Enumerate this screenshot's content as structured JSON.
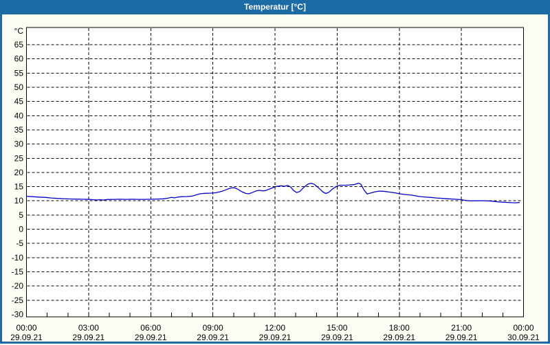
{
  "window": {
    "title": "Temperatur [°C]",
    "titlebar_color": "#1c6ba4",
    "border_color": "#1c6ba4",
    "content_background": "#fcfef5"
  },
  "chart_data": {
    "type": "line",
    "title": "Temperatur [°C]",
    "plot_background": "#ffffff",
    "grid": {
      "style": "dashed",
      "color": "#000000",
      "vertical_every_hours": 3,
      "horizontal_every_degC": 5
    },
    "y_axis": {
      "unit_label": "°C",
      "min": -30,
      "max": 65,
      "tick_step": 5,
      "tick_labels": [
        "65",
        "60",
        "55",
        "50",
        "45",
        "40",
        "35",
        "30",
        "25",
        "20",
        "15",
        "10",
        "5",
        "0",
        "-5",
        "-10",
        "-15",
        "-20",
        "-25",
        "-30"
      ]
    },
    "x_axis": {
      "minor_tick_hours": 1,
      "major_tick_hours": 3,
      "ticks": [
        {
          "hour": 0,
          "time": "00:00",
          "date": "29.09.21"
        },
        {
          "hour": 3,
          "time": "03:00",
          "date": "29.09.21"
        },
        {
          "hour": 6,
          "time": "06:00",
          "date": "29.09.21"
        },
        {
          "hour": 9,
          "time": "09:00",
          "date": "29.09.21"
        },
        {
          "hour": 12,
          "time": "12:00",
          "date": "29.09.21"
        },
        {
          "hour": 15,
          "time": "15:00",
          "date": "29.09.21"
        },
        {
          "hour": 18,
          "time": "18:00",
          "date": "29.09.21"
        },
        {
          "hour": 21,
          "time": "21:00",
          "date": "29.09.21"
        },
        {
          "hour": 24,
          "time": "00:00",
          "date": "30.09.21"
        }
      ]
    },
    "series": [
      {
        "name": "Temperatur",
        "color": "#0101cd",
        "points": [
          [
            0.0,
            11.6
          ],
          [
            0.3,
            11.45
          ],
          [
            0.6,
            11.3
          ],
          [
            0.9,
            11.2
          ],
          [
            1.2,
            11.0
          ],
          [
            1.5,
            10.85
          ],
          [
            1.8,
            10.75
          ],
          [
            2.1,
            10.65
          ],
          [
            2.4,
            10.6
          ],
          [
            2.7,
            10.55
          ],
          [
            3.0,
            10.5
          ],
          [
            3.2,
            10.4
          ],
          [
            3.4,
            10.3
          ],
          [
            3.55,
            10.4
          ],
          [
            3.7,
            10.3
          ],
          [
            3.9,
            10.45
          ],
          [
            4.2,
            10.5
          ],
          [
            4.5,
            10.55
          ],
          [
            4.8,
            10.5
          ],
          [
            5.1,
            10.55
          ],
          [
            5.4,
            10.5
          ],
          [
            5.7,
            10.5
          ],
          [
            6.0,
            10.55
          ],
          [
            6.3,
            10.6
          ],
          [
            6.6,
            10.7
          ],
          [
            6.8,
            10.9
          ],
          [
            7.0,
            11.2
          ],
          [
            7.15,
            11.05
          ],
          [
            7.3,
            11.3
          ],
          [
            7.5,
            11.45
          ],
          [
            7.75,
            11.5
          ],
          [
            8.0,
            11.65
          ],
          [
            8.2,
            12.1
          ],
          [
            8.4,
            12.5
          ],
          [
            8.6,
            12.65
          ],
          [
            8.9,
            12.7
          ],
          [
            9.1,
            12.8
          ],
          [
            9.3,
            13.1
          ],
          [
            9.5,
            13.5
          ],
          [
            9.7,
            14.1
          ],
          [
            9.9,
            14.55
          ],
          [
            10.05,
            14.6
          ],
          [
            10.2,
            14.1
          ],
          [
            10.4,
            13.2
          ],
          [
            10.6,
            12.6
          ],
          [
            10.75,
            12.5
          ],
          [
            10.9,
            12.9
          ],
          [
            11.1,
            13.5
          ],
          [
            11.25,
            13.7
          ],
          [
            11.4,
            13.5
          ],
          [
            11.55,
            13.6
          ],
          [
            11.75,
            14.2
          ],
          [
            11.95,
            14.8
          ],
          [
            12.1,
            15.1
          ],
          [
            12.3,
            15.3
          ],
          [
            12.45,
            15.1
          ],
          [
            12.6,
            15.4
          ],
          [
            12.75,
            14.9
          ],
          [
            12.9,
            13.6
          ],
          [
            13.05,
            12.9
          ],
          [
            13.2,
            13.3
          ],
          [
            13.4,
            14.8
          ],
          [
            13.6,
            15.9
          ],
          [
            13.75,
            16.2
          ],
          [
            13.9,
            15.8
          ],
          [
            14.1,
            14.6
          ],
          [
            14.3,
            13.2
          ],
          [
            14.45,
            12.6
          ],
          [
            14.6,
            13.0
          ],
          [
            14.8,
            14.3
          ],
          [
            15.0,
            15.2
          ],
          [
            15.15,
            15.5
          ],
          [
            15.4,
            15.5
          ],
          [
            15.6,
            15.6
          ],
          [
            15.8,
            15.7
          ],
          [
            15.95,
            16.0
          ],
          [
            16.05,
            16.2
          ],
          [
            16.15,
            15.8
          ],
          [
            16.3,
            13.8
          ],
          [
            16.45,
            12.4
          ],
          [
            16.6,
            12.7
          ],
          [
            16.8,
            13.1
          ],
          [
            17.0,
            13.4
          ],
          [
            17.2,
            13.4
          ],
          [
            17.5,
            13.1
          ],
          [
            17.8,
            12.8
          ],
          [
            18.0,
            12.5
          ],
          [
            18.3,
            12.2
          ],
          [
            18.6,
            12.0
          ],
          [
            18.9,
            11.6
          ],
          [
            19.2,
            11.35
          ],
          [
            19.5,
            11.2
          ],
          [
            19.8,
            11.0
          ],
          [
            20.1,
            10.85
          ],
          [
            20.4,
            10.7
          ],
          [
            20.7,
            10.55
          ],
          [
            21.0,
            10.4
          ],
          [
            21.2,
            10.15
          ],
          [
            21.4,
            10.0
          ],
          [
            21.7,
            10.0
          ],
          [
            22.0,
            10.05
          ],
          [
            22.2,
            10.0
          ],
          [
            22.5,
            9.85
          ],
          [
            22.8,
            9.6
          ],
          [
            23.1,
            9.5
          ],
          [
            23.4,
            9.35
          ],
          [
            23.6,
            9.3
          ],
          [
            23.8,
            9.4
          ]
        ]
      }
    ]
  }
}
